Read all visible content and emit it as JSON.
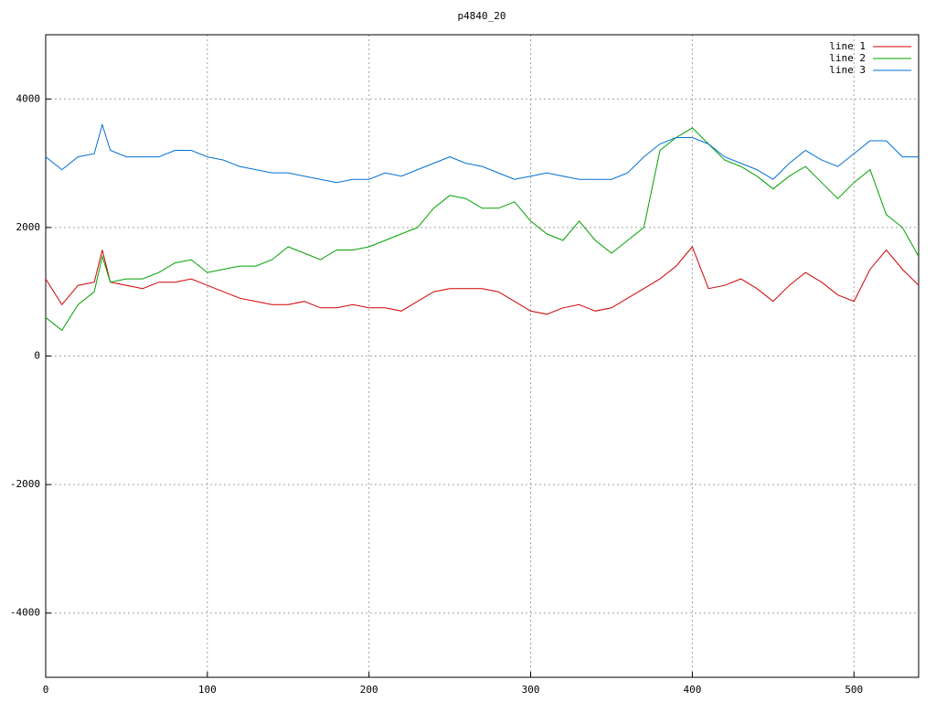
{
  "chart_data": {
    "type": "line",
    "title": "p4840_20",
    "x": [
      0,
      10,
      20,
      30,
      35,
      40,
      50,
      60,
      70,
      80,
      90,
      100,
      110,
      120,
      130,
      140,
      150,
      160,
      170,
      180,
      190,
      200,
      210,
      220,
      230,
      240,
      250,
      260,
      270,
      280,
      290,
      300,
      310,
      320,
      330,
      340,
      350,
      360,
      370,
      380,
      390,
      400,
      410,
      420,
      430,
      440,
      450,
      460,
      470,
      480,
      490,
      500,
      510,
      520,
      530,
      540
    ],
    "series": [
      {
        "name": "line 1",
        "color": "#d00000",
        "values": [
          1200,
          800,
          1100,
          1150,
          1650,
          1150,
          1100,
          1050,
          1150,
          1150,
          1200,
          1100,
          1000,
          900,
          850,
          800,
          800,
          850,
          750,
          750,
          800,
          750,
          750,
          700,
          850,
          1000,
          1050,
          1050,
          1050,
          1000,
          850,
          700,
          650,
          750,
          800,
          700,
          750,
          900,
          1050,
          1200,
          1400,
          1700,
          1050,
          1100,
          1200,
          1050,
          850,
          1100,
          1300,
          1150,
          950,
          850,
          1350,
          1650,
          1350,
          1100
        ]
      },
      {
        "name": "line 2",
        "color": "#00a000",
        "values": [
          600,
          400,
          800,
          1000,
          1550,
          1150,
          1200,
          1200,
          1300,
          1450,
          1500,
          1300,
          1350,
          1400,
          1400,
          1500,
          1700,
          1600,
          1500,
          1650,
          1650,
          1700,
          1800,
          1900,
          2000,
          2300,
          2500,
          2450,
          2300,
          2300,
          2400,
          2100,
          1900,
          1800,
          2100,
          1800,
          1600,
          1800,
          2000,
          3200,
          3400,
          3550,
          3300,
          3050,
          2950,
          2800,
          2600,
          2800,
          2950,
          2700,
          2450,
          2700,
          2900,
          2200,
          2000,
          1550
        ]
      },
      {
        "name": "line 3",
        "color": "#0070d0",
        "values": [
          3100,
          2900,
          3100,
          3150,
          3600,
          3200,
          3100,
          3100,
          3100,
          3200,
          3200,
          3100,
          3050,
          2950,
          2900,
          2850,
          2850,
          2800,
          2750,
          2700,
          2750,
          2750,
          2850,
          2800,
          2900,
          3000,
          3100,
          3000,
          2950,
          2850,
          2750,
          2800,
          2850,
          2800,
          2750,
          2750,
          2750,
          2850,
          3100,
          3300,
          3400,
          3400,
          3300,
          3100,
          3000,
          2900,
          2750,
          3000,
          3200,
          3050,
          2950,
          3150,
          3350,
          3350,
          3100,
          3100
        ]
      }
    ],
    "xlim": [
      0,
      540
    ],
    "xticks": [
      0,
      100,
      200,
      300,
      400,
      500
    ],
    "ylim": [
      -5000,
      5000
    ],
    "yticks": [
      -4000,
      -2000,
      0,
      2000,
      4000
    ],
    "grid": true,
    "legend": "top-right"
  }
}
